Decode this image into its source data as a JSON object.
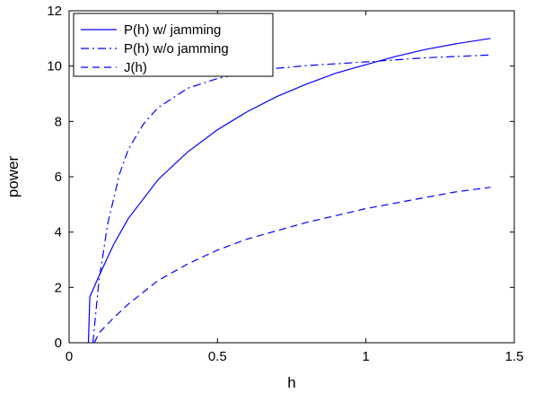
{
  "chart_data": {
    "type": "line",
    "title": "",
    "xlabel": "h",
    "ylabel": "power",
    "xlim": [
      0,
      1.5
    ],
    "ylim": [
      0,
      12
    ],
    "xticks": [
      0,
      0.5,
      1,
      1.5
    ],
    "xtick_labels": [
      "0",
      "0.5",
      "1",
      "1.5"
    ],
    "yticks": [
      0,
      2,
      4,
      6,
      8,
      10,
      12
    ],
    "ytick_labels": [
      "0",
      "2",
      "4",
      "6",
      "8",
      "10",
      "12"
    ],
    "grid": false,
    "legend_position": "top-left",
    "line_color": "#0000ff",
    "series": [
      {
        "name": "P(h) w/ jamming",
        "style": "solid",
        "points": [
          [
            0.065,
            0
          ],
          [
            0.07,
            1.66
          ],
          [
            0.1,
            2.4
          ],
          [
            0.15,
            3.55
          ],
          [
            0.2,
            4.5
          ],
          [
            0.3,
            5.9
          ],
          [
            0.4,
            6.9
          ],
          [
            0.5,
            7.7
          ],
          [
            0.6,
            8.35
          ],
          [
            0.7,
            8.9
          ],
          [
            0.8,
            9.35
          ],
          [
            0.9,
            9.75
          ],
          [
            1.0,
            10.05
          ],
          [
            1.1,
            10.35
          ],
          [
            1.2,
            10.6
          ],
          [
            1.3,
            10.8
          ],
          [
            1.42,
            11.0
          ]
        ]
      },
      {
        "name": "P(h) w/o jamming",
        "style": "dashdot",
        "points": [
          [
            0.08,
            0
          ],
          [
            0.1,
            2.2
          ],
          [
            0.13,
            4.3
          ],
          [
            0.17,
            6.1
          ],
          [
            0.2,
            7.0
          ],
          [
            0.25,
            7.9
          ],
          [
            0.3,
            8.5
          ],
          [
            0.4,
            9.2
          ],
          [
            0.5,
            9.55
          ],
          [
            0.6,
            9.78
          ],
          [
            0.7,
            9.92
          ],
          [
            0.8,
            10.02
          ],
          [
            1.0,
            10.15
          ],
          [
            1.2,
            10.3
          ],
          [
            1.42,
            10.4
          ]
        ]
      },
      {
        "name": "J(h)",
        "style": "dashed",
        "points": [
          [
            0.085,
            0
          ],
          [
            0.1,
            0.35
          ],
          [
            0.15,
            0.9
          ],
          [
            0.2,
            1.4
          ],
          [
            0.3,
            2.25
          ],
          [
            0.4,
            2.85
          ],
          [
            0.5,
            3.35
          ],
          [
            0.6,
            3.75
          ],
          [
            0.7,
            4.05
          ],
          [
            0.8,
            4.35
          ],
          [
            0.9,
            4.6
          ],
          [
            1.0,
            4.85
          ],
          [
            1.1,
            5.05
          ],
          [
            1.2,
            5.25
          ],
          [
            1.3,
            5.45
          ],
          [
            1.42,
            5.62
          ]
        ]
      }
    ]
  }
}
